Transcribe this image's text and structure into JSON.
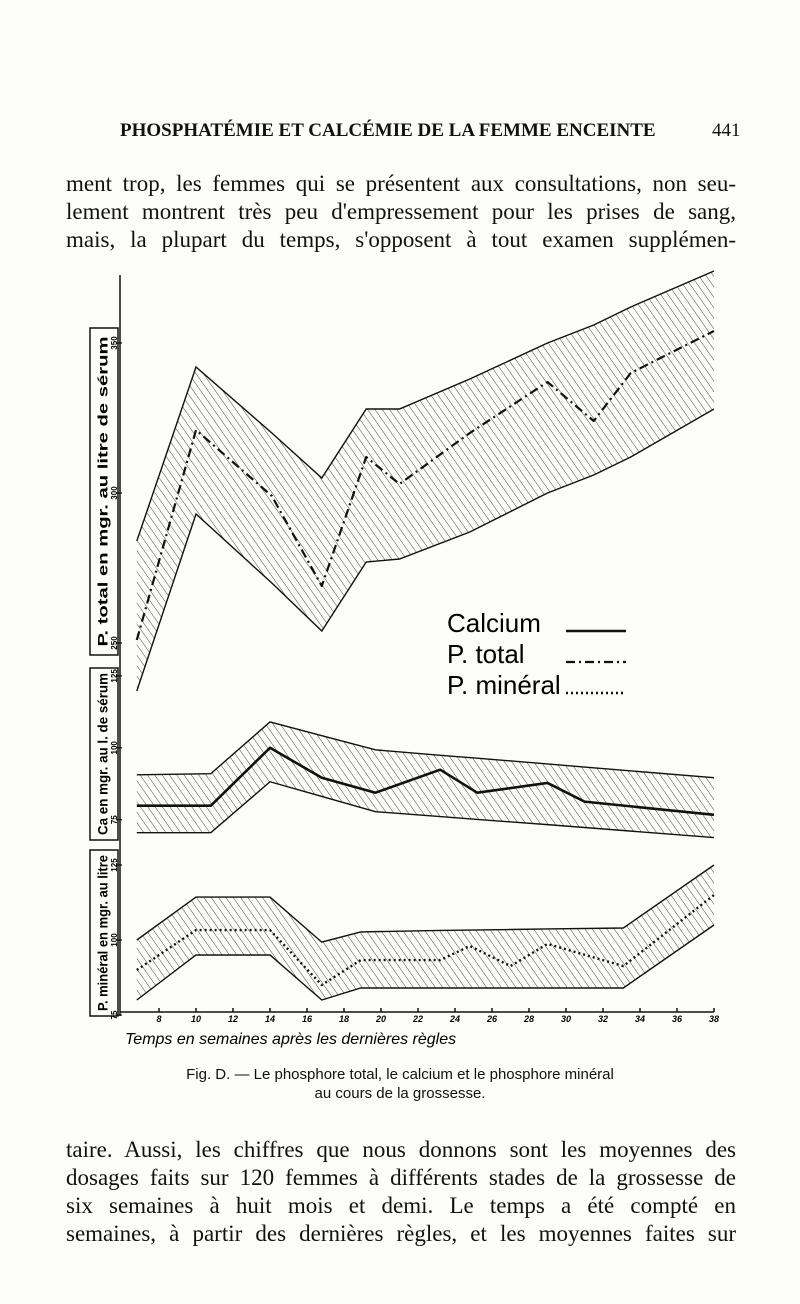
{
  "header": {
    "title": "PHOSPHATÉMIE ET CALCÉMIE DE LA FEMME ENCEINTE",
    "page_number": "441"
  },
  "text_top": [
    "ment trop, les femmes qui se présentent aux consultations, non seu-",
    "lement montrent très peu d'empressement pour les prises de sang,",
    "mais, la plupart du temps, s'opposent à tout examen supplémen-"
  ],
  "chart_data": [
    {
      "type": "line",
      "y_label": "P. total en mgr. au litre de sérum",
      "x": [
        6.8,
        10,
        14.1,
        16.8,
        19.2,
        21,
        24.8,
        29,
        31.5,
        33.5,
        38
      ],
      "xlim": [
        6,
        38
      ],
      "ylim": [
        245,
        355
      ],
      "yticks": [
        250,
        300,
        350
      ],
      "series": [
        {
          "name": "P. total",
          "color": "#111",
          "style": "dash-dot",
          "values": [
            251,
            321,
            299,
            269,
            312,
            303,
            320,
            337,
            324,
            340,
            354
          ],
          "band_high": [
            284,
            342,
            320,
            305,
            328,
            328,
            338,
            350,
            356,
            362,
            374
          ],
          "band_low": [
            234,
            293,
            270,
            254,
            277,
            278,
            287,
            300,
            306,
            312,
            328
          ]
        }
      ]
    },
    {
      "type": "line",
      "y_label": "Ca en mgr. au l. de sérum",
      "x": [
        6.8,
        10.8,
        14,
        16.8,
        19.7,
        23.2,
        25.2,
        29,
        31,
        38
      ],
      "xlim": [
        6,
        38
      ],
      "ylim": [
        69,
        126
      ],
      "yticks": [
        75,
        100,
        125
      ],
      "series": [
        {
          "name": "Calcium",
          "color": "#111",
          "style": "solid",
          "values": [
            79.9,
            79.9,
            100,
            89.6,
            84.4,
            92.4,
            84.4,
            87.8,
            81.3,
            76.7
          ],
          "band_high": [
            90.6,
            91,
            109,
            104.2,
            99.3,
            97.4,
            96.4,
            94.4,
            93.3,
            89.6
          ],
          "band_low": [
            70.5,
            70.5,
            88.2,
            83.1,
            77.8,
            76.1,
            75.1,
            73.3,
            72.3,
            68.8
          ]
        }
      ]
    },
    {
      "type": "line",
      "y_label": "P. minéral en mgr. au litre",
      "x_label": "Temps en semaines après les dernières règles",
      "x": [
        6.8,
        10,
        14,
        16.8,
        18.9,
        23.2,
        24.8,
        27,
        29,
        33.1,
        38
      ],
      "xlim": [
        6,
        38
      ],
      "xticks": [
        8,
        10,
        12,
        14,
        16,
        18,
        20,
        22,
        24,
        26,
        28,
        30,
        32,
        34,
        36,
        38
      ],
      "ylim": [
        74,
        130
      ],
      "yticks": [
        75,
        100,
        125
      ],
      "series": [
        {
          "name": "P. minéral",
          "color": "#111",
          "style": "dotted",
          "values": [
            90,
            103.3,
            103.3,
            85,
            93.3,
            93.3,
            98,
            91.3,
            98.7,
            91.3,
            115
          ],
          "band_high": [
            100,
            114.3,
            114.3,
            99.3,
            102.7,
            103.2,
            103.3,
            103.5,
            103.7,
            104,
            125
          ],
          "band_low": [
            80,
            95,
            95,
            80,
            84,
            84,
            84,
            84,
            84,
            84,
            105
          ]
        }
      ]
    }
  ],
  "legend_order": [
    1,
    0,
    2
  ],
  "caption": [
    "Fig. D. — Le phosphore total, le calcium et le phosphore minéral",
    "au cours de la grossesse."
  ],
  "text_bottom": [
    "taire. Aussi, les chiffres que nous donnons sont les moyennes des",
    "dosages faits sur 120 femmes à différents stades de la grossesse de",
    "six semaines à huit mois et demi. Le temps a été compté en",
    "semaines, à partir des dernières règles, et les moyennes faites sur"
  ]
}
